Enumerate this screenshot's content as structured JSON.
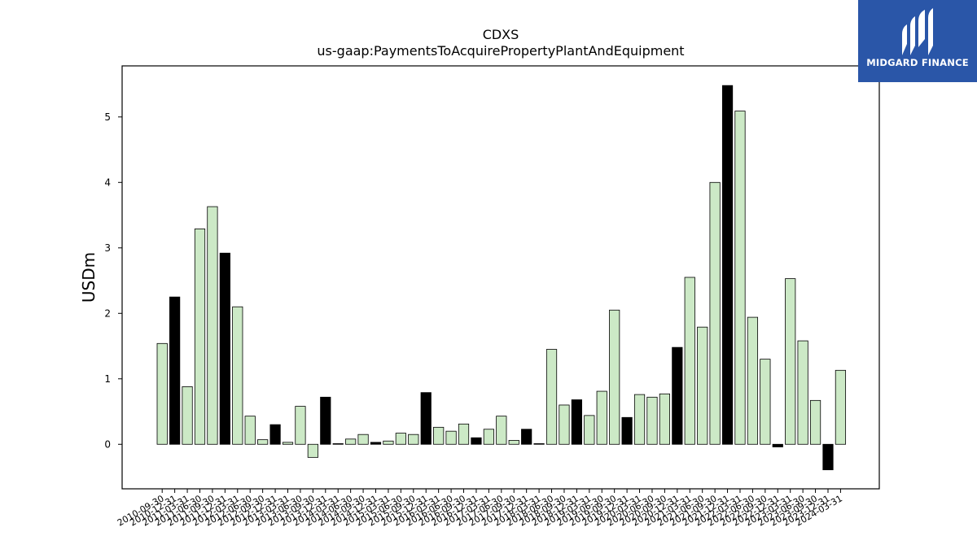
{
  "chart_data": {
    "type": "bar",
    "title": "CDXS",
    "subtitle": "us-gaap:PaymentsToAcquirePropertyPlantAndEquipment",
    "xlabel": "",
    "ylabel": "USDm",
    "ylim": [
      -0.68,
      5.78
    ],
    "yticks": [
      0,
      1,
      2,
      3,
      4,
      5
    ],
    "grid": false,
    "categories": [
      "2010-09-30",
      "2010-12-31",
      "2011-03-31",
      "2011-06-30",
      "2011-09-30",
      "2011-12-31",
      "2012-03-31",
      "2012-06-30",
      "2012-09-30",
      "2012-12-31",
      "2013-03-31",
      "2013-06-30",
      "2013-09-30",
      "2013-12-31",
      "2014-03-31",
      "2014-06-30",
      "2014-09-30",
      "2014-12-31",
      "2015-03-31",
      "2015-06-30",
      "2015-09-30",
      "2015-12-31",
      "2016-03-31",
      "2016-06-30",
      "2016-09-30",
      "2016-12-31",
      "2017-03-31",
      "2017-06-30",
      "2017-09-30",
      "2017-12-31",
      "2018-03-31",
      "2018-06-30",
      "2018-09-30",
      "2018-12-31",
      "2019-03-31",
      "2019-06-30",
      "2019-09-30",
      "2019-12-31",
      "2020-03-31",
      "2020-06-30",
      "2020-09-30",
      "2020-12-31",
      "2021-03-31",
      "2021-06-30",
      "2021-09-30",
      "2021-12-31",
      "2022-03-31",
      "2022-06-30",
      "2022-09-30",
      "2022-12-31",
      "2023-03-31",
      "2023-06-30",
      "2023-09-30",
      "2023-12-31",
      "2024-03-31"
    ],
    "values": [
      1.54,
      2.25,
      0.88,
      3.29,
      3.63,
      2.92,
      2.1,
      0.43,
      0.07,
      0.3,
      0.03,
      0.58,
      -0.2,
      0.72,
      0.01,
      0.08,
      0.15,
      0.03,
      0.05,
      0.17,
      0.15,
      0.79,
      0.26,
      0.2,
      0.31,
      0.1,
      0.23,
      0.43,
      0.06,
      0.23,
      0.01,
      1.45,
      0.6,
      0.68,
      0.44,
      0.81,
      2.05,
      0.41,
      0.76,
      0.72,
      0.77,
      1.48,
      2.55,
      1.79,
      4.0,
      5.48,
      5.09,
      1.94,
      1.3,
      -0.04,
      2.53,
      1.58,
      0.67,
      -0.39,
      1.13
    ],
    "highlight": [
      false,
      true,
      false,
      false,
      false,
      true,
      false,
      false,
      false,
      true,
      false,
      false,
      false,
      true,
      false,
      false,
      false,
      true,
      false,
      false,
      false,
      true,
      false,
      false,
      false,
      true,
      false,
      false,
      false,
      true,
      false,
      false,
      false,
      true,
      false,
      false,
      false,
      true,
      false,
      false,
      false,
      true,
      false,
      false,
      false,
      true,
      false,
      false,
      false,
      true,
      false,
      false,
      false,
      true,
      false
    ],
    "colors": {
      "bar": "#cce9c6",
      "highlight_bar": "#000000",
      "edge": "#000000"
    }
  },
  "logo": {
    "text": "MIDGARD FINANCE",
    "bg": "#2a56a8"
  }
}
